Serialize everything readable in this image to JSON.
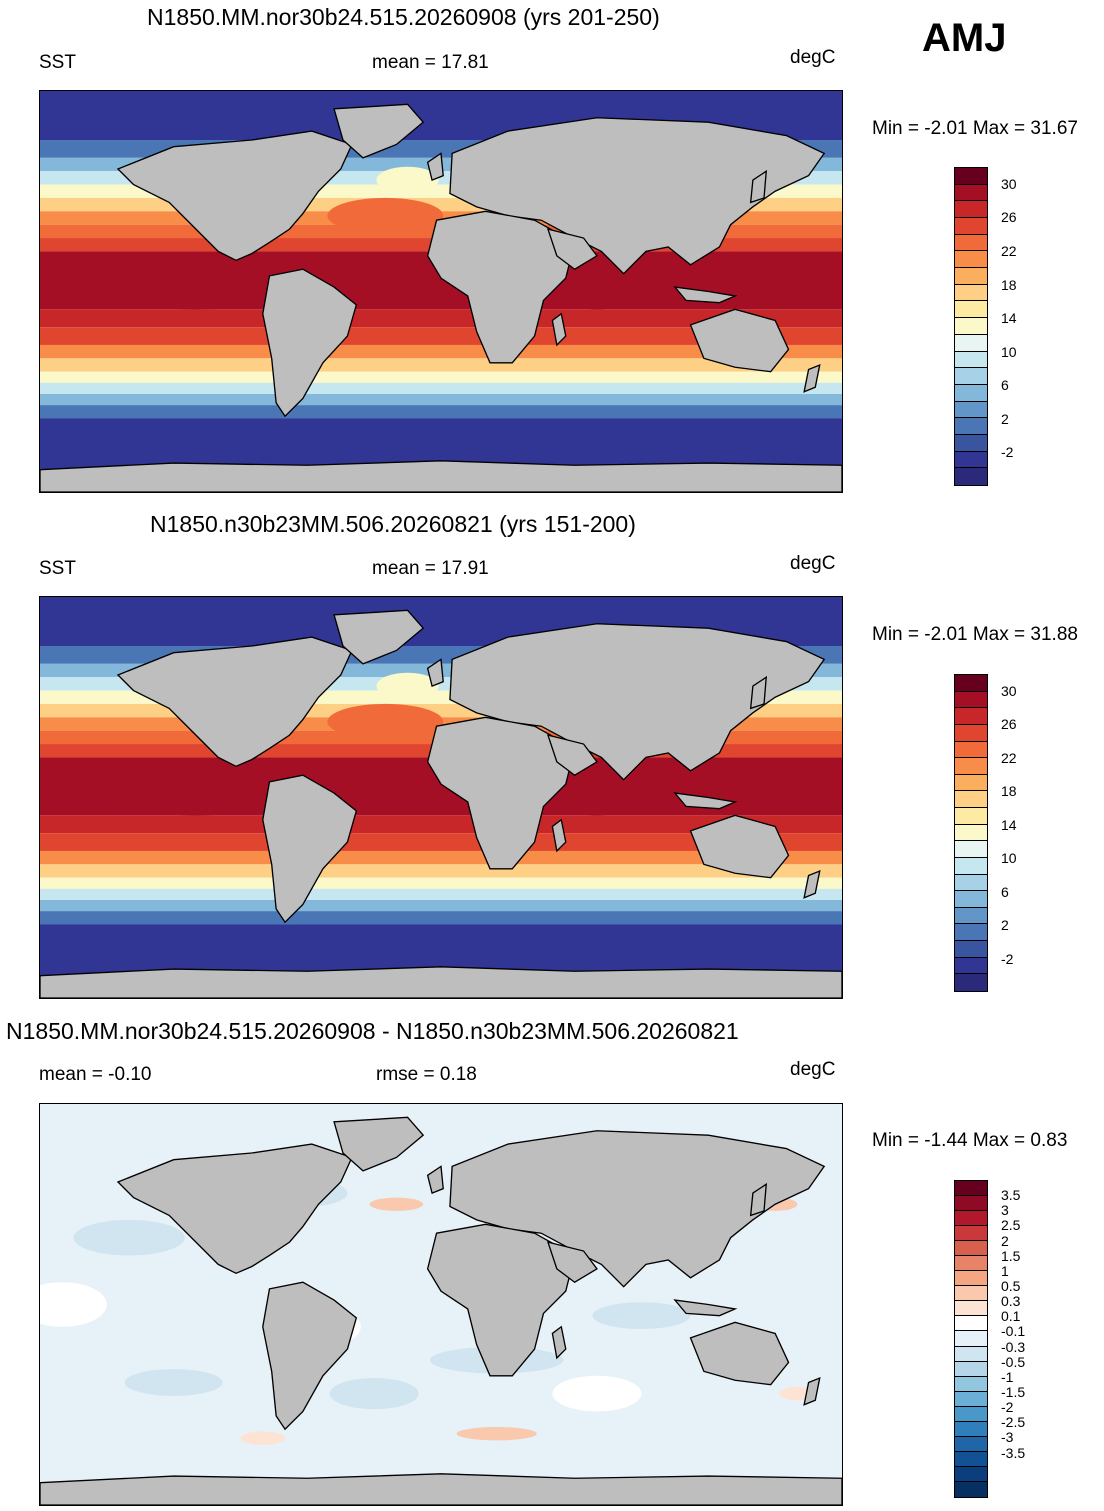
{
  "season": "AMJ",
  "panels": [
    {
      "title": "N1850.MM.nor30b24.515.20260908 (yrs 201-250)",
      "left_label": "SST",
      "center_label": "mean =  17.81",
      "right_label": "degC",
      "minmax": "Min =  -2.01 Max =  31.67",
      "kind": "field"
    },
    {
      "title": "N1850.n30b23MM.506.20260821 (yrs 151-200)",
      "left_label": "SST",
      "center_label": "mean =  17.91",
      "right_label": "degC",
      "minmax": "Min =  -2.01 Max =  31.88",
      "kind": "field"
    },
    {
      "title": "N1850.MM.nor30b24.515.20260908 - N1850.n30b23MM.506.20260821",
      "left_label": "mean =  -0.10",
      "center_label": "rmse =   0.18",
      "right_label": "degC",
      "minmax": "Min =  -1.44 Max =   0.83",
      "kind": "diff"
    }
  ],
  "sst_colorbar": {
    "colors": [
      "#67001f",
      "#a50f26",
      "#c8272a",
      "#e0462f",
      "#f06a3a",
      "#f78d48",
      "#fbae5e",
      "#fdd086",
      "#feeba3",
      "#fbf9c9",
      "#e8f5f2",
      "#c6e6f0",
      "#a6d1e6",
      "#83b8da",
      "#6396c8",
      "#4b76b5",
      "#3a559f",
      "#313695",
      "#2b2a7a"
    ],
    "tick_labels": [
      "30",
      "26",
      "22",
      "18",
      "14",
      "10",
      "6",
      "2",
      "-2"
    ]
  },
  "diff_colorbar": {
    "colors": [
      "#67001f",
      "#8f0a25",
      "#b2182b",
      "#c9383a",
      "#d6604d",
      "#e78366",
      "#f4a582",
      "#f9c8ad",
      "#fde3d4",
      "#ffffff",
      "#e7f1f8",
      "#d1e5f0",
      "#b5d6e8",
      "#92c5de",
      "#6baed6",
      "#4a98c9",
      "#2f7fbc",
      "#1f66a9",
      "#125294",
      "#0b3e7c",
      "#053061"
    ],
    "tick_labels": [
      "3.5",
      "3",
      "2.5",
      "2",
      "1.5",
      "1",
      "0.5",
      "0.3",
      "0.1",
      "-0.1",
      "-0.3",
      "-0.5",
      "-1",
      "-1.5",
      "-2",
      "-2.5",
      "-3",
      "-3.5"
    ]
  }
}
